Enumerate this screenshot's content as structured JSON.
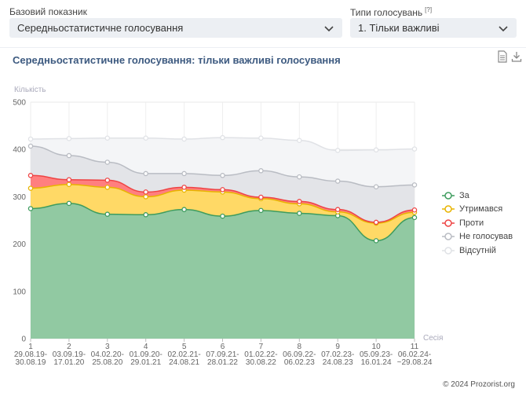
{
  "filters": {
    "base_indicator_label": "Базовий показник",
    "base_indicator_value": "Середньостатистичне голосування",
    "vote_types_label": "Типи голосувань",
    "vote_types_hint": "[?]",
    "vote_types_value": "1. Тільки важливі"
  },
  "chart_data": {
    "type": "area",
    "title": "Середньостатистичне голосування: тільки важливі голосування",
    "ylabel": "Кількість",
    "xlabel": "Сесія",
    "ylim": [
      0,
      500
    ],
    "yticks": [
      0,
      100,
      200,
      300,
      400,
      500
    ],
    "categories": [
      {
        "num": "1",
        "l1": "29.08.19-",
        "l2": "30.08.19"
      },
      {
        "num": "2",
        "l1": "03.09.19-",
        "l2": "17.01.20"
      },
      {
        "num": "3",
        "l1": "04.02.20-",
        "l2": "25.08.20"
      },
      {
        "num": "4",
        "l1": "01.09.20-",
        "l2": "29.01.21"
      },
      {
        "num": "5",
        "l1": "02.02.21-",
        "l2": "24.08.21"
      },
      {
        "num": "6",
        "l1": "07.09.21-",
        "l2": "28.01.22"
      },
      {
        "num": "7",
        "l1": "01.02.22-",
        "l2": "30.08.22"
      },
      {
        "num": "8",
        "l1": "06.09.22-",
        "l2": "06.02.23"
      },
      {
        "num": "9",
        "l1": "07.02.23-",
        "l2": "24.08.23"
      },
      {
        "num": "10",
        "l1": "05.09.23-",
        "l2": "16.01.24"
      },
      {
        "num": "11",
        "l1": "06.02.24-",
        "l2": "~29.08.24"
      }
    ],
    "stacked": true,
    "series": [
      {
        "name": "За",
        "color": "#91c9a2",
        "line": "#3e9c5e",
        "values": [
          275,
          286,
          263,
          262,
          273,
          259,
          271,
          265,
          260,
          207,
          256
        ]
      },
      {
        "name": "Утримався",
        "color": "#ffd966",
        "line": "#e8b400",
        "values": [
          43,
          40,
          57,
          38,
          41,
          51,
          25,
          20,
          8,
          37,
          11
        ]
      },
      {
        "name": "Проти",
        "color": "#ff7f7f",
        "line": "#ee4444",
        "values": [
          27,
          10,
          15,
          10,
          6,
          5,
          3,
          5,
          5,
          2,
          5
        ]
      },
      {
        "name": "Не голосував",
        "color": "#e3e4e8",
        "line": "#b9bcc3",
        "values": [
          62,
          51,
          38,
          39,
          29,
          30,
          56,
          52,
          60,
          75,
          53
        ]
      },
      {
        "name": "Відсутній",
        "color": "#f4f5f7",
        "line": "#e0e2e6",
        "values": [
          15,
          36,
          51,
          75,
          73,
          80,
          69,
          77,
          65,
          78,
          76
        ]
      }
    ],
    "grid": true,
    "legend_position": "right"
  },
  "icons": {
    "doc": "document-icon",
    "download": "download-icon"
  },
  "footer": {
    "copyright": "© 2024 Prozorist.org"
  }
}
